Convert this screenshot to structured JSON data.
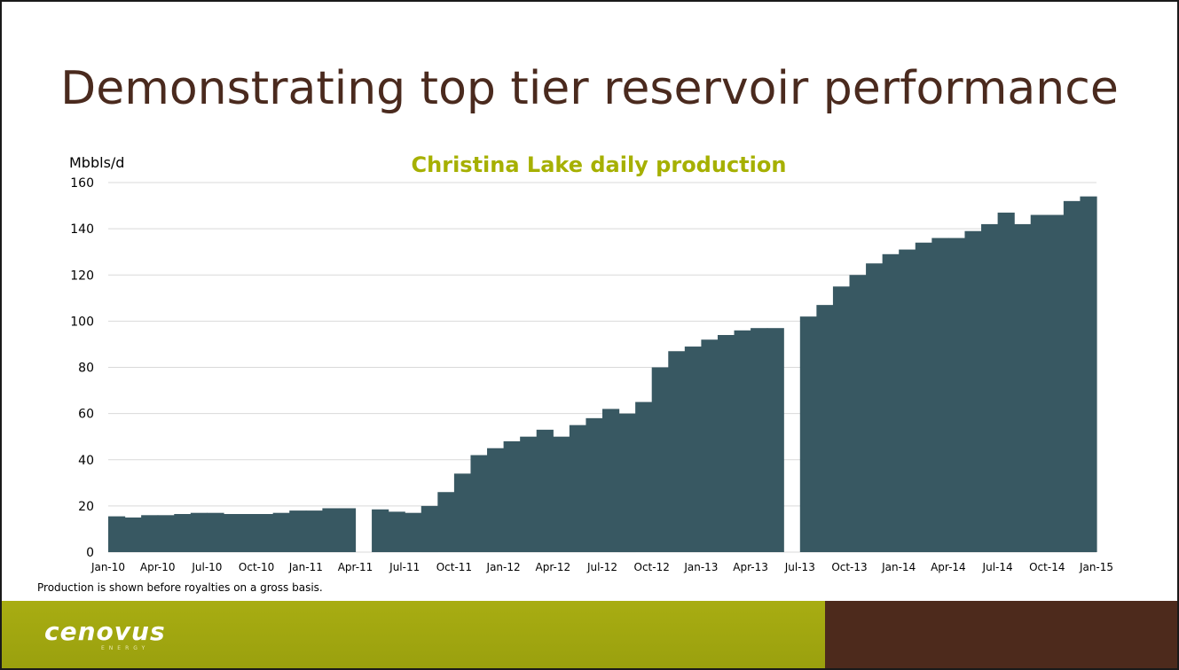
{
  "slide": {
    "title": "Demonstrating top tier reservoir performance",
    "footnote": "Production is shown before royalties on a gross basis.",
    "logo_text": "cenovus",
    "logo_subtext": "ENERGY"
  },
  "colors": {
    "title": "#4a2a1e",
    "chart_title": "#a6b000",
    "fill": "#385862",
    "grid": "#d9d9d9",
    "footer_green": "#a8ad12",
    "footer_brown": "#4d2a1c"
  },
  "chart_data": {
    "type": "area",
    "title": "Christina Lake daily production",
    "ylabel": "Mbbls/d",
    "xlabel": "",
    "ylim": [
      0,
      160
    ],
    "y_ticks": [
      "0",
      "20",
      "40",
      "60",
      "80",
      "100",
      "120",
      "140",
      "160"
    ],
    "x_ticks": [
      "Jan-10",
      "Apr-10",
      "Jul-10",
      "Oct-10",
      "Jan-11",
      "Apr-11",
      "Jul-11",
      "Oct-11",
      "Jan-12",
      "Apr-12",
      "Jul-12",
      "Oct-12",
      "Jan-13",
      "Apr-13",
      "Jul-13",
      "Oct-13",
      "Jan-14",
      "Apr-14",
      "Jul-14",
      "Oct-14",
      "Jan-15"
    ],
    "grid": true,
    "legend": "none",
    "series": [
      {
        "x": [
          "Jan-10",
          "Feb-10",
          "Mar-10",
          "Apr-10",
          "May-10",
          "Jun-10",
          "Jul-10",
          "Aug-10",
          "Sep-10",
          "Oct-10",
          "Nov-10",
          "Dec-10",
          "Jan-11",
          "Feb-11",
          "Mar-11",
          "Apr-11",
          "May-11",
          "Jun-11",
          "Jul-11",
          "Aug-11",
          "Sep-11",
          "Oct-11",
          "Nov-11",
          "Dec-11",
          "Jan-12",
          "Feb-12",
          "Mar-12",
          "Apr-12",
          "May-12",
          "Jun-12",
          "Jul-12",
          "Aug-12",
          "Sep-12",
          "Oct-12",
          "Nov-12",
          "Dec-12",
          "Jan-13",
          "Feb-13",
          "Mar-13",
          "Apr-13",
          "May-13",
          "Jun-13",
          "Jul-13",
          "Aug-13",
          "Sep-13",
          "Oct-13",
          "Nov-13",
          "Dec-13",
          "Jan-14",
          "Feb-14",
          "Mar-14",
          "Apr-14",
          "May-14",
          "Jun-14",
          "Jul-14",
          "Aug-14",
          "Sep-14",
          "Oct-14",
          "Nov-14",
          "Dec-14"
        ],
        "values": [
          15.5,
          15,
          16,
          16,
          16.5,
          17,
          17,
          16.5,
          16.5,
          16.5,
          17,
          18,
          18,
          19,
          19,
          0,
          18.5,
          17.5,
          17,
          20,
          26,
          34,
          42,
          45,
          48,
          50,
          53,
          50,
          55,
          58,
          62,
          60,
          65,
          80,
          87,
          89,
          92,
          94,
          96,
          97,
          97,
          0,
          102,
          107,
          115,
          120,
          125,
          129,
          131,
          134,
          136,
          136,
          139,
          142,
          147,
          142,
          146,
          146,
          152,
          154
        ]
      }
    ]
  }
}
